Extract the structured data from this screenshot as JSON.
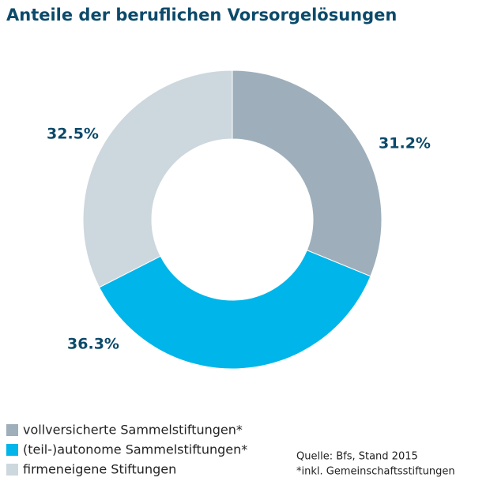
{
  "chart_data": {
    "type": "pie",
    "donut": true,
    "title": "Anteile der beruflichen Vorsorgelösungen",
    "categories": [
      "vollversicherte Sammelstiftungen*",
      "(teil-)autonome Sammelstiftungen*",
      "firmeneigene Stiftungen"
    ],
    "values": [
      31.2,
      36.3,
      32.5
    ],
    "value_labels": [
      "31.2%",
      "36.3%",
      "32.5%"
    ],
    "colors": [
      "#9eafbb",
      "#00b5e9",
      "#cdd7de"
    ],
    "source": "Quelle: Bfs, Stand 2015",
    "note": "*inkl. Gemeinschaftsstiftungen"
  }
}
